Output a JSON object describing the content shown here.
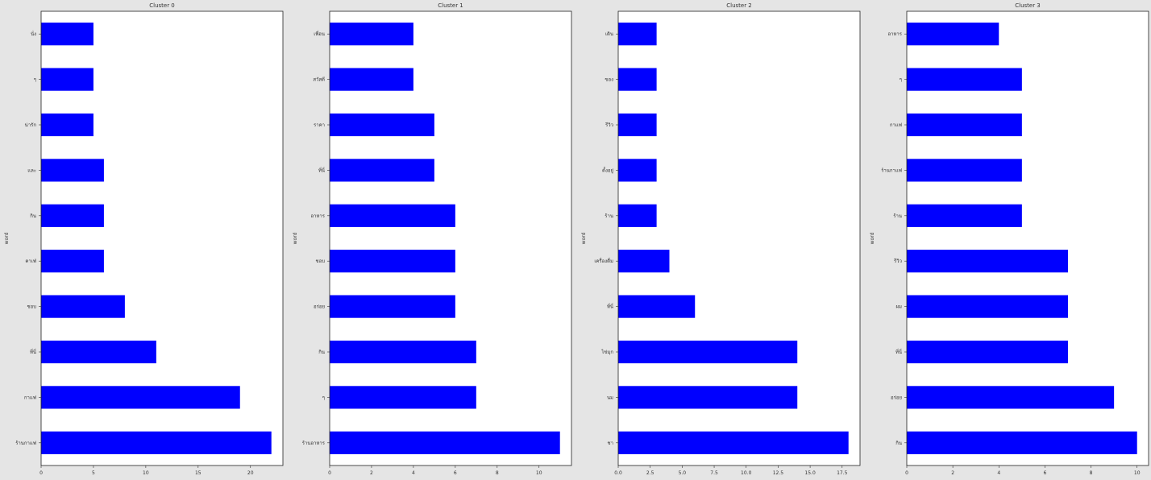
{
  "chart_data": [
    {
      "type": "bar",
      "orientation": "horizontal",
      "title": "Cluster 0",
      "ylabel": "word",
      "xlabel": "",
      "categories": [
        "ร้านกาแฟ",
        "กาแฟ",
        "ที่นี่",
        "ชอบ",
        "คาเฟ่",
        "กิน",
        "และ",
        "น่ารัก",
        "ๆ",
        "นั่ง"
      ],
      "values": [
        22,
        19,
        11,
        8,
        6,
        6,
        6,
        5,
        5,
        5
      ],
      "xlim": [
        0,
        23.1
      ],
      "xticks": [
        0,
        5,
        10,
        15,
        20
      ],
      "xtick_labels": [
        "0",
        "5",
        "10",
        "15",
        "20"
      ],
      "color": "#0000ff"
    },
    {
      "type": "bar",
      "orientation": "horizontal",
      "title": "Cluster 1",
      "ylabel": "word",
      "xlabel": "",
      "categories": [
        "ร้านอาหาร",
        "ๆ",
        "กิน",
        "อร่อย",
        "ชอบ",
        "อาหาร",
        "ที่นี่",
        "ราคา",
        "สวัสดี",
        "เพื่อน"
      ],
      "values": [
        11,
        7,
        7,
        6,
        6,
        6,
        5,
        5,
        4,
        4
      ],
      "xlim": [
        0,
        11.55
      ],
      "xticks": [
        0,
        2,
        4,
        6,
        8,
        10
      ],
      "xtick_labels": [
        "0",
        "2",
        "4",
        "6",
        "8",
        "10"
      ],
      "color": "#0000ff"
    },
    {
      "type": "bar",
      "orientation": "horizontal",
      "title": "Cluster 2",
      "ylabel": "word",
      "xlabel": "",
      "categories": [
        "ชา",
        "นม",
        "ไข่มุก",
        "ที่นี่",
        "เครื่องดื่ม",
        "ร้าน",
        "ตั้งอยู่",
        "รีวิว",
        "ของ",
        "เดิน"
      ],
      "values": [
        18,
        14,
        14,
        6,
        4,
        3,
        3,
        3,
        3,
        3
      ],
      "xlim": [
        0,
        18.9
      ],
      "xticks": [
        0,
        2.5,
        5,
        7.5,
        10,
        12.5,
        15,
        17.5
      ],
      "xtick_labels": [
        "0.0",
        "2.5",
        "5.0",
        "7.5",
        "10.0",
        "12.5",
        "15.0",
        "17.5"
      ],
      "color": "#0000ff"
    },
    {
      "type": "bar",
      "orientation": "horizontal",
      "title": "Cluster 3",
      "ylabel": "word",
      "xlabel": "",
      "categories": [
        "กิน",
        "อร่อย",
        "ที่นี่",
        "ผม",
        "รีวิว",
        "ร้าน",
        "ร้านกาแฟ",
        "กาแฟ",
        "ๆ",
        "อาหาร"
      ],
      "values": [
        10,
        9,
        7,
        7,
        7,
        5,
        5,
        5,
        5,
        4
      ],
      "xlim": [
        0,
        10.5
      ],
      "xticks": [
        0,
        2,
        4,
        6,
        8,
        10
      ],
      "xtick_labels": [
        "0",
        "2",
        "4",
        "6",
        "8",
        "10"
      ],
      "color": "#0000ff"
    }
  ]
}
